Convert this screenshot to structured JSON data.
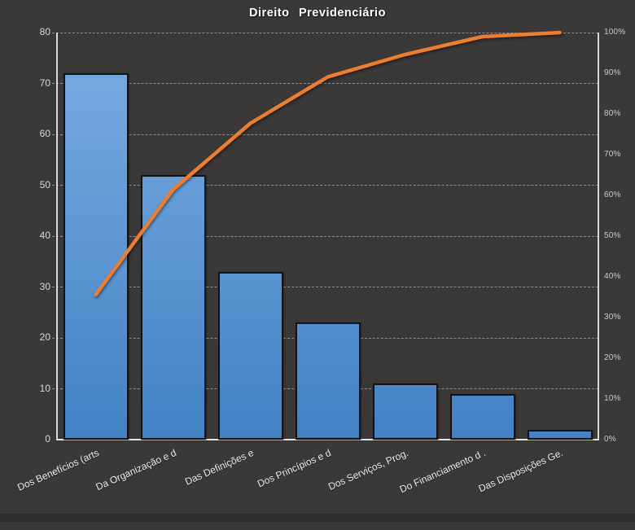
{
  "title": "Direito Previdenciário",
  "colors": {
    "background": "#3b3838",
    "axis": "#d9d9d9",
    "gridline": "#9f9f9f",
    "bar_gradient_top": "#7cade2",
    "bar_gradient_bottom": "#4282c5",
    "bar_border": "#131313",
    "line": "#ED7D31",
    "tick_label": "#d9d9d9",
    "category_label": "#ececec",
    "title_text": "#ffffff"
  },
  "chart_data": {
    "type": "bar",
    "subtype": "pareto (bars + cumulative percent line)",
    "title": "Direito Previdenciário",
    "categories": [
      "Dos Benefícios (arts",
      "Da Organização e d",
      "Das Definições e",
      "Dos Princípios e d",
      "Dos Serviços, Prog.",
      "Do Financiamento d .",
      "Das Disposições Ge."
    ],
    "series": [
      {
        "name": "bar-values",
        "type": "bar",
        "axis": "left",
        "values": [
          72,
          52,
          33,
          23,
          11,
          9,
          2
        ]
      },
      {
        "name": "cumulative-percent-line",
        "type": "line",
        "axis": "right",
        "values": [
          35.6,
          61.4,
          77.7,
          89.1,
          94.6,
          99.0,
          100.0
        ]
      }
    ],
    "left_axis": {
      "min": 0,
      "max": 80,
      "step": 10,
      "tick_labels": [
        "80",
        "70",
        "60",
        "50",
        "40",
        "30",
        "20",
        "10",
        "0"
      ]
    },
    "right_axis": {
      "min_percent": 0,
      "max_percent": 100,
      "step_percent": 10,
      "tick_labels": [
        "100%",
        "90%",
        "80%",
        "70%",
        "60%",
        "50%",
        "40%",
        "30%",
        "20%",
        "10%",
        "0%"
      ]
    },
    "grid": "horizontal dashed",
    "legend": "none"
  }
}
